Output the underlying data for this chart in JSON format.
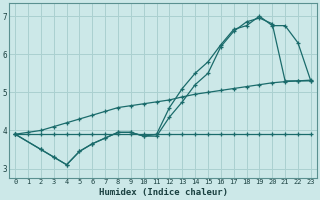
{
  "xlabel": "Humidex (Indice chaleur)",
  "background_color": "#cce8e8",
  "grid_color": "#aad0d0",
  "line_color": "#1a6b6b",
  "xlim": [
    -0.5,
    23.5
  ],
  "ylim": [
    2.75,
    7.35
  ],
  "xticks": [
    0,
    1,
    2,
    3,
    4,
    5,
    6,
    7,
    8,
    9,
    10,
    11,
    12,
    13,
    14,
    15,
    16,
    17,
    18,
    19,
    20,
    21,
    22,
    23
  ],
  "yticks": [
    3,
    4,
    5,
    6,
    7
  ],
  "line1_x": [
    0,
    1,
    2,
    3,
    4,
    5,
    6,
    7,
    8,
    9,
    10,
    11,
    12,
    13,
    14,
    15,
    16,
    17,
    18,
    19,
    20,
    21,
    22,
    23
  ],
  "line1_y": [
    3.9,
    3.9,
    3.9,
    3.9,
    3.9,
    3.9,
    3.9,
    3.9,
    3.9,
    3.9,
    3.9,
    3.9,
    3.9,
    3.9,
    3.9,
    3.9,
    3.9,
    3.9,
    3.9,
    3.9,
    3.9,
    3.9,
    3.9,
    3.9
  ],
  "line2_x": [
    0,
    2,
    3,
    4,
    5,
    6,
    7,
    8,
    9,
    10,
    11,
    12,
    13,
    14,
    15,
    16,
    17,
    18,
    19,
    20,
    21,
    22,
    23
  ],
  "line2_y": [
    3.9,
    3.5,
    3.3,
    3.1,
    3.45,
    3.65,
    3.8,
    3.95,
    3.95,
    3.85,
    3.9,
    4.6,
    5.1,
    5.5,
    5.8,
    6.25,
    6.65,
    6.75,
    7.0,
    6.75,
    6.75,
    6.3,
    5.3
  ],
  "line3_x": [
    0,
    2,
    3,
    4,
    5,
    6,
    7,
    8,
    9,
    10,
    11,
    12,
    13,
    14,
    15,
    16,
    17,
    18,
    19,
    20,
    21,
    22,
    23
  ],
  "line3_y": [
    3.9,
    3.5,
    3.3,
    3.1,
    3.45,
    3.65,
    3.8,
    3.95,
    3.95,
    3.85,
    3.85,
    4.35,
    4.75,
    5.2,
    5.5,
    6.2,
    6.6,
    6.85,
    6.95,
    6.8,
    5.3,
    5.3,
    5.3
  ],
  "line4_x": [
    0,
    1,
    2,
    3,
    4,
    5,
    6,
    7,
    8,
    9,
    10,
    11,
    12,
    13,
    14,
    15,
    16,
    17,
    18,
    19,
    20,
    21,
    22,
    23
  ],
  "line4_y": [
    3.9,
    3.95,
    4.0,
    4.1,
    4.2,
    4.3,
    4.4,
    4.5,
    4.6,
    4.65,
    4.7,
    4.75,
    4.8,
    4.88,
    4.95,
    5.0,
    5.05,
    5.1,
    5.15,
    5.2,
    5.25,
    5.28,
    5.3,
    5.32
  ]
}
